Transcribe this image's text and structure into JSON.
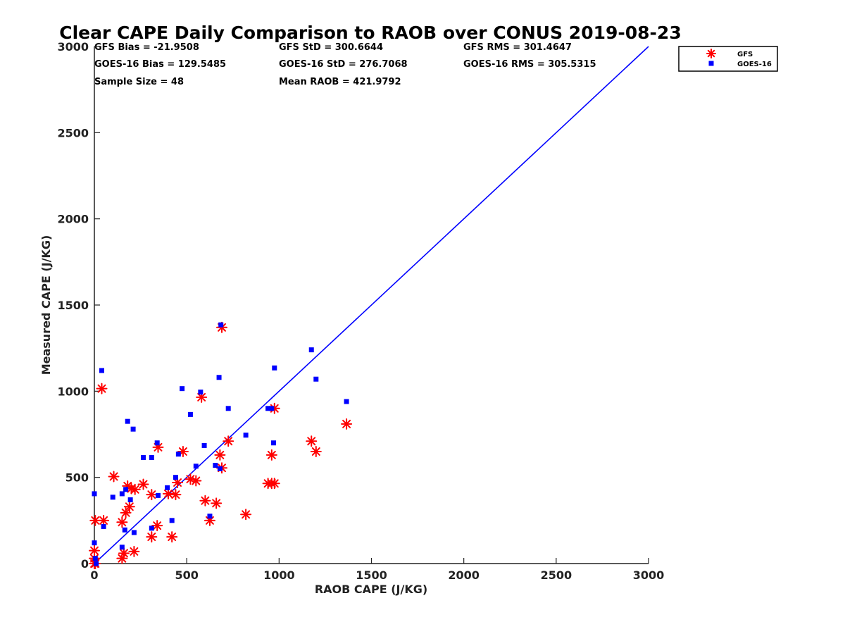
{
  "chart_data": {
    "type": "scatter",
    "title": "Clear CAPE Daily Comparison to RAOB over CONUS 2019-08-23",
    "xlabel": "RAOB CAPE (J/KG)",
    "ylabel": "Measured CAPE (J/KG)",
    "xlim": [
      0,
      3000
    ],
    "ylim": [
      0,
      3000
    ],
    "xticks": [
      "0",
      "500",
      "1000",
      "1500",
      "2000",
      "2500",
      "3000"
    ],
    "yticks": [
      "0",
      "500",
      "1000",
      "1500",
      "2000",
      "2500",
      "3000"
    ],
    "grid": false,
    "legend_position": "top-right",
    "stats": [
      "GFS Bias = -21.9508",
      "GFS StD = 300.6644",
      "GFS RMS = 301.4647",
      "GOES-16 Bias = 129.5485",
      "GOES-16 StD = 276.7068",
      "GOES-16 RMS = 305.5315",
      "Sample Size = 48",
      "Mean RAOB = 421.9792"
    ],
    "reference_line": [
      [
        0,
        0
      ],
      [
        3000,
        3000
      ]
    ],
    "series": [
      {
        "name": "GFS",
        "marker": "asterisk",
        "color": "#ff0000",
        "x": [
          0,
          0,
          0,
          5,
          5,
          40,
          50,
          105,
          150,
          150,
          160,
          170,
          180,
          190,
          200,
          215,
          220,
          265,
          310,
          310,
          340,
          345,
          400,
          420,
          440,
          450,
          480,
          520,
          550,
          580,
          600,
          625,
          660,
          680,
          690,
          690,
          725,
          820,
          940,
          960,
          960,
          975,
          975,
          1175,
          1200,
          1365
        ],
        "y": [
          0,
          30,
          75,
          250,
          0,
          1015,
          250,
          505,
          30,
          240,
          60,
          295,
          450,
          330,
          435,
          70,
          430,
          460,
          400,
          155,
          220,
          675,
          405,
          155,
          400,
          470,
          650,
          490,
          480,
          965,
          365,
          250,
          350,
          630,
          555,
          1370,
          710,
          285,
          465,
          465,
          630,
          900,
          465,
          710,
          650,
          810
        ]
      },
      {
        "name": "GOES-16",
        "marker": "square",
        "color": "#0000ff",
        "x": [
          0,
          0,
          5,
          10,
          40,
          50,
          100,
          150,
          150,
          165,
          170,
          180,
          195,
          210,
          215,
          265,
          310,
          310,
          340,
          345,
          395,
          420,
          440,
          455,
          475,
          520,
          550,
          575,
          595,
          625,
          655,
          675,
          680,
          685,
          725,
          820,
          940,
          960,
          970,
          975,
          1175,
          1200,
          1365
        ],
        "y": [
          120,
          405,
          30,
          0,
          1120,
          215,
          385,
          95,
          405,
          195,
          430,
          825,
          370,
          780,
          180,
          615,
          615,
          205,
          700,
          395,
          440,
          250,
          500,
          635,
          1015,
          865,
          565,
          995,
          685,
          275,
          570,
          1080,
          550,
          1385,
          900,
          745,
          900,
          900,
          700,
          1135,
          1240,
          1070,
          940
        ]
      }
    ]
  }
}
